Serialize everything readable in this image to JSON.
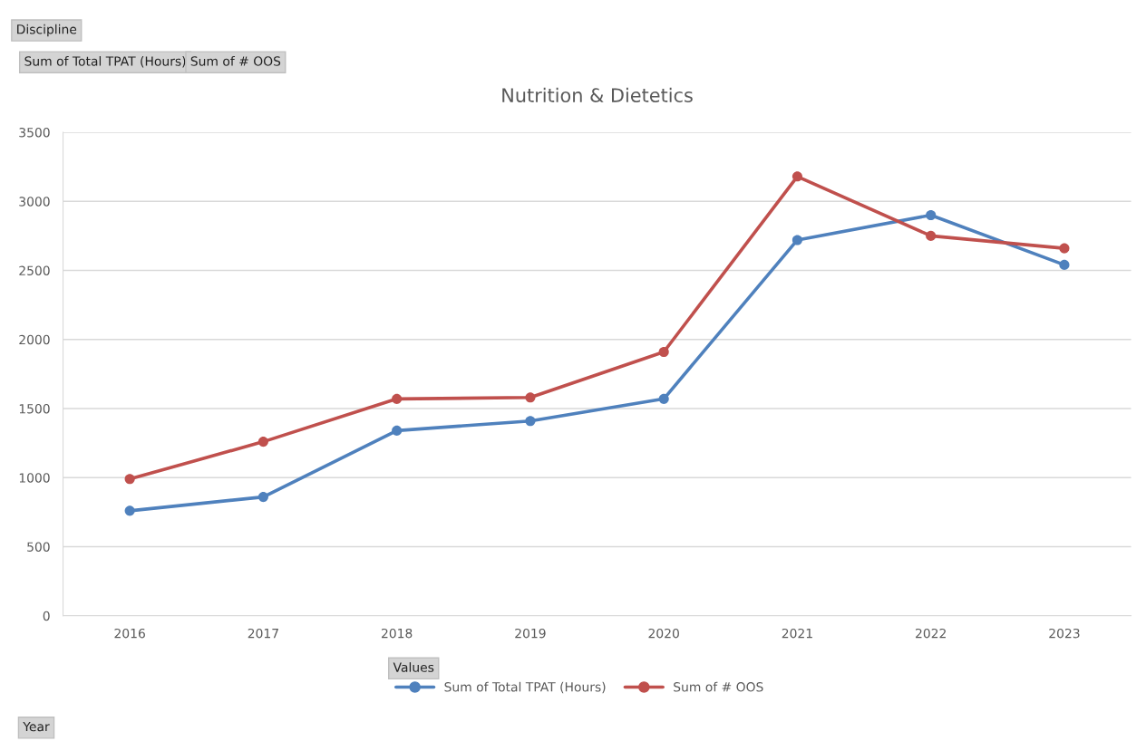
{
  "chart_data": {
    "type": "line",
    "title": "Nutrition & Dietetics",
    "categories": [
      "2016",
      "2017",
      "2018",
      "2019",
      "2020",
      "2021",
      "2022",
      "2023"
    ],
    "series": [
      {
        "name": "Sum of Total TPAT (Hours)",
        "color": "#4f81bd",
        "values": [
          760,
          860,
          1340,
          1410,
          1570,
          2720,
          2900,
          2540
        ]
      },
      {
        "name": "Sum of # OOS",
        "color": "#c0504d",
        "values": [
          990,
          1260,
          1570,
          1580,
          1910,
          3180,
          2750,
          2660
        ]
      }
    ],
    "ylim": [
      0,
      3500
    ],
    "yticks": [
      0,
      500,
      1000,
      1500,
      2000,
      2500,
      3000,
      3500
    ],
    "grid": "y",
    "legend": "bottom",
    "marker": "circle",
    "line_style": "solid",
    "annotations": [
      "Discipline",
      "Sum of Total TPAT (Hours)",
      "Sum of # OOS",
      "Values",
      "Year"
    ]
  }
}
